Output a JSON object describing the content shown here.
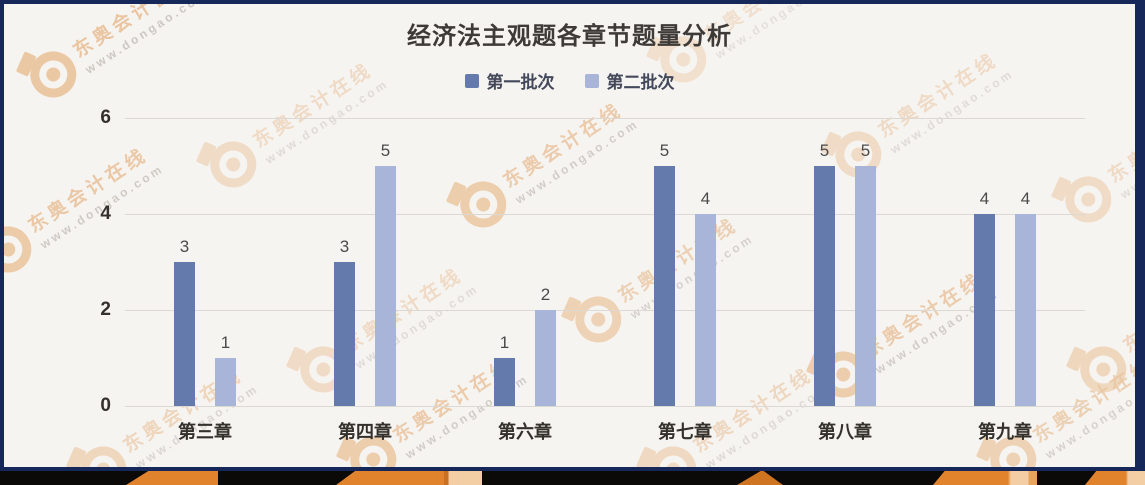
{
  "title": "经济法主观题各章节题量分析",
  "legend": [
    {
      "label": "第一批次",
      "color": "#647aac"
    },
    {
      "label": "第二批次",
      "color": "#a8b5d9"
    }
  ],
  "chart_data": {
    "type": "bar",
    "title": "经济法主观题各章节题量分析",
    "categories": [
      "第三章",
      "第四章",
      "第六章",
      "第七章",
      "第八章",
      "第九章"
    ],
    "series": [
      {
        "name": "第一批次",
        "color": "#647aac",
        "values": [
          3,
          3,
          1,
          5,
          5,
          4
        ]
      },
      {
        "name": "第二批次",
        "color": "#a8b5d9",
        "values": [
          1,
          5,
          2,
          4,
          5,
          4
        ]
      }
    ],
    "ylabel": "",
    "xlabel": "",
    "ylim": [
      0,
      6
    ],
    "yticks": [
      0,
      2,
      4,
      6
    ],
    "grid": true,
    "legend_position": "top",
    "value_labels": true
  },
  "watermark": {
    "brand_text": "东奥会计在线",
    "url_text": "www.dongao.com",
    "logo": "dongao-logo"
  },
  "colors": {
    "series1": "#647aac",
    "series2": "#a8b5d9",
    "card_bg": "#f6f4f1",
    "card_border": "#152859",
    "grid_line": "#dcd9d5",
    "banner_bg": "#0c0a08",
    "pencil_orange": "#e1832c",
    "pencil_tip": "#f3cda3"
  }
}
